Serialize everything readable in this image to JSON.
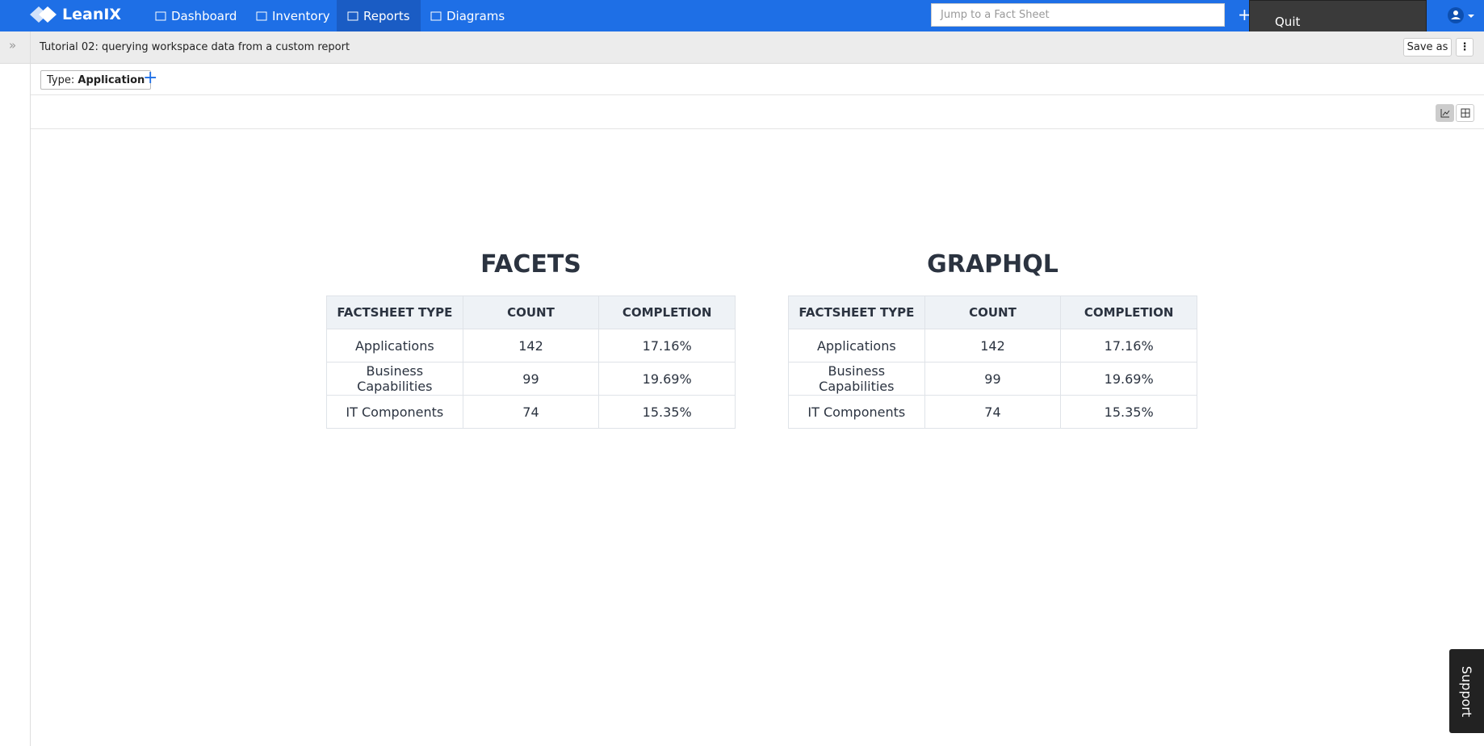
{
  "nav": {
    "brand": "LeanIX",
    "items": [
      "Dashboard",
      "Inventory",
      "Reports",
      "Diagrams"
    ],
    "search_placeholder": "Jump to a Fact Sheet",
    "quit": "Quit"
  },
  "report": {
    "title": "Tutorial 02: querying workspace data from a custom report",
    "save_as": "Save as"
  },
  "filter": {
    "label": "Type:",
    "value": "Application"
  },
  "tables": [
    {
      "title": "FACETS",
      "headers": [
        "FACTSHEET TYPE",
        "COUNT",
        "COMPLETION"
      ],
      "rows": [
        [
          "Applications",
          "142",
          "17.16%"
        ],
        [
          "Business Capabilities",
          "99",
          "19.69%"
        ],
        [
          "IT Components",
          "74",
          "15.35%"
        ]
      ]
    },
    {
      "title": "GRAPHQL",
      "headers": [
        "FACTSHEET TYPE",
        "COUNT",
        "COMPLETION"
      ],
      "rows": [
        [
          "Applications",
          "142",
          "17.16%"
        ],
        [
          "Business Capabilities",
          "99",
          "19.69%"
        ],
        [
          "IT Components",
          "74",
          "15.35%"
        ]
      ]
    }
  ],
  "support": "Support"
}
